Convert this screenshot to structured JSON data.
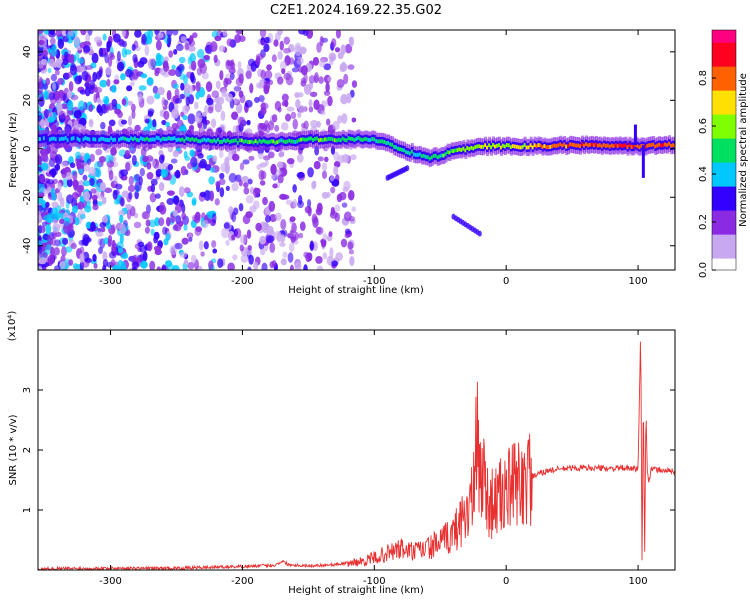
{
  "title": "C2E1.2024.169.22.35.G02",
  "chart_data": [
    {
      "type": "heatmap",
      "xlabel": "Height of straight line (km)",
      "ylabel": "Frequency (Hz)",
      "xlim": [
        -355,
        128
      ],
      "ylim": [
        -50,
        49
      ],
      "xticks": [
        -300,
        -200,
        -100,
        0,
        100
      ],
      "xtick_labels": [
        "-300",
        "-200",
        "-100",
        "0",
        "100"
      ],
      "yticks": [
        -40,
        -20,
        0,
        20,
        40
      ],
      "ytick_labels": [
        "-40",
        "-20",
        "0",
        "20",
        "40"
      ],
      "colorbar": {
        "label": "Normalized spectral amplitude",
        "range": [
          0,
          1
        ],
        "ticks": [
          0.0,
          0.2,
          0.4,
          0.6,
          0.8
        ],
        "tick_labels": [
          "0.0",
          "0.2",
          "0.4",
          "0.6",
          "0.8"
        ],
        "colors": [
          "#ffffff",
          "#c8a8f0",
          "#8a2be2",
          "#3300ff",
          "#00c8ff",
          "#00e060",
          "#80ff00",
          "#ffe000",
          "#ff6000",
          "#ff0020",
          "#ff0080"
        ]
      },
      "ridge": {
        "x": [
          -355,
          -300,
          -250,
          -200,
          -170,
          -140,
          -120,
          -100,
          -90,
          -80,
          -70,
          -60,
          -50,
          -40,
          -30,
          -20,
          -10,
          0,
          20,
          50,
          80,
          100,
          110,
          128
        ],
        "frequency": [
          4,
          4,
          4,
          3,
          3,
          4,
          4,
          4,
          2,
          0,
          -2,
          -4,
          -3,
          -1,
          0,
          1,
          1,
          1,
          1,
          1.5,
          1.5,
          1,
          1.5,
          1.5
        ],
        "amplitude": [
          0.35,
          0.4,
          0.45,
          0.5,
          0.5,
          0.5,
          0.5,
          0.48,
          0.5,
          0.5,
          0.45,
          0.45,
          0.5,
          0.55,
          0.6,
          0.6,
          0.62,
          0.62,
          0.7,
          0.82,
          0.85,
          0.85,
          0.82,
          0.8
        ]
      },
      "grid": false
    },
    {
      "type": "line",
      "xlabel": "Height of straight line (km)",
      "ylabel": "SNR (10 * v/v)",
      "yscale_label": "(x10⁴)",
      "xlim": [
        -355,
        128
      ],
      "ylim": [
        0,
        40000
      ],
      "xticks": [
        -300,
        -200,
        -100,
        0,
        100
      ],
      "xtick_labels": [
        "-300",
        "-200",
        "-100",
        "0",
        "100"
      ],
      "yticks": [
        10000,
        20000,
        30000
      ],
      "ytick_labels": [
        "1",
        "2",
        "3"
      ],
      "color": "#e83030",
      "series": [
        {
          "x": [
            -355,
            -300,
            -250,
            -200,
            -175,
            -170,
            -165,
            -150,
            -130,
            -110,
            -100,
            -90,
            -80,
            -70,
            -60,
            -50,
            -40,
            -35,
            -30,
            -25,
            -22,
            -20,
            -18,
            -15,
            -10,
            -5,
            0,
            10,
            20,
            30,
            40,
            50,
            60,
            70,
            80,
            90,
            95,
            100,
            102,
            103,
            104,
            105,
            106,
            107,
            108,
            110,
            115,
            120,
            128
          ],
          "y": [
            200,
            300,
            300,
            600,
            800,
            1500,
            900,
            700,
            900,
            1400,
            2000,
            2800,
            3500,
            3000,
            3600,
            4500,
            6000,
            8000,
            10000,
            12000,
            22000,
            15000,
            18000,
            12000,
            11000,
            12000,
            13000,
            14500,
            15500,
            16500,
            16800,
            17000,
            17000,
            17000,
            16900,
            17000,
            16800,
            16900,
            40000,
            1500,
            30000,
            3000,
            27000,
            17000,
            14500,
            16800,
            16700,
            16600,
            16400
          ]
        }
      ],
      "grid": false
    }
  ]
}
